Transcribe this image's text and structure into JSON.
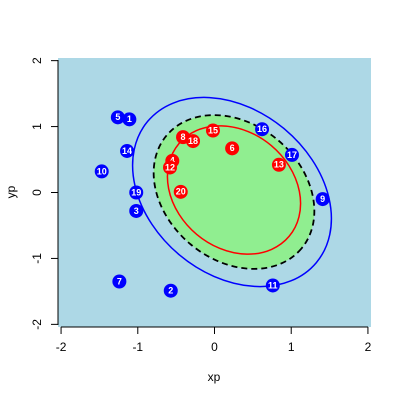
{
  "chart_data": {
    "type": "scatter",
    "xlabel": "xp",
    "ylabel": "yp",
    "xlim": [
      -2.04,
      2.04
    ],
    "ylim": [
      -2.04,
      2.04
    ],
    "xticks": [
      -2,
      -1,
      0,
      1,
      2
    ],
    "yticks": [
      -2,
      -1,
      0,
      1,
      2
    ],
    "background": "#add8e6",
    "series": [
      {
        "color": "#0000ff",
        "labels": [
          "5",
          "1",
          "14",
          "10",
          "19",
          "3",
          "7",
          "2",
          "16",
          "17",
          "9",
          "11"
        ],
        "x": [
          -1.26,
          -1.11,
          -1.14,
          -1.47,
          -1.02,
          -1.02,
          -1.24,
          -0.57,
          0.62,
          1.01,
          1.41,
          0.76
        ],
        "y": [
          1.14,
          1.11,
          0.63,
          0.32,
          0.0,
          -0.28,
          -1.35,
          -1.49,
          0.96,
          0.57,
          -0.1,
          -1.41
        ]
      },
      {
        "color": "#ff0000",
        "labels": [
          "8",
          "18",
          "15",
          "6",
          "4",
          "12",
          "20",
          "13"
        ],
        "x": [
          -0.41,
          -0.28,
          -0.02,
          0.23,
          -0.55,
          -0.58,
          -0.44,
          0.84
        ],
        "y": [
          0.84,
          0.78,
          0.94,
          0.67,
          0.48,
          0.38,
          0.01,
          0.42
        ]
      }
    ]
  }
}
